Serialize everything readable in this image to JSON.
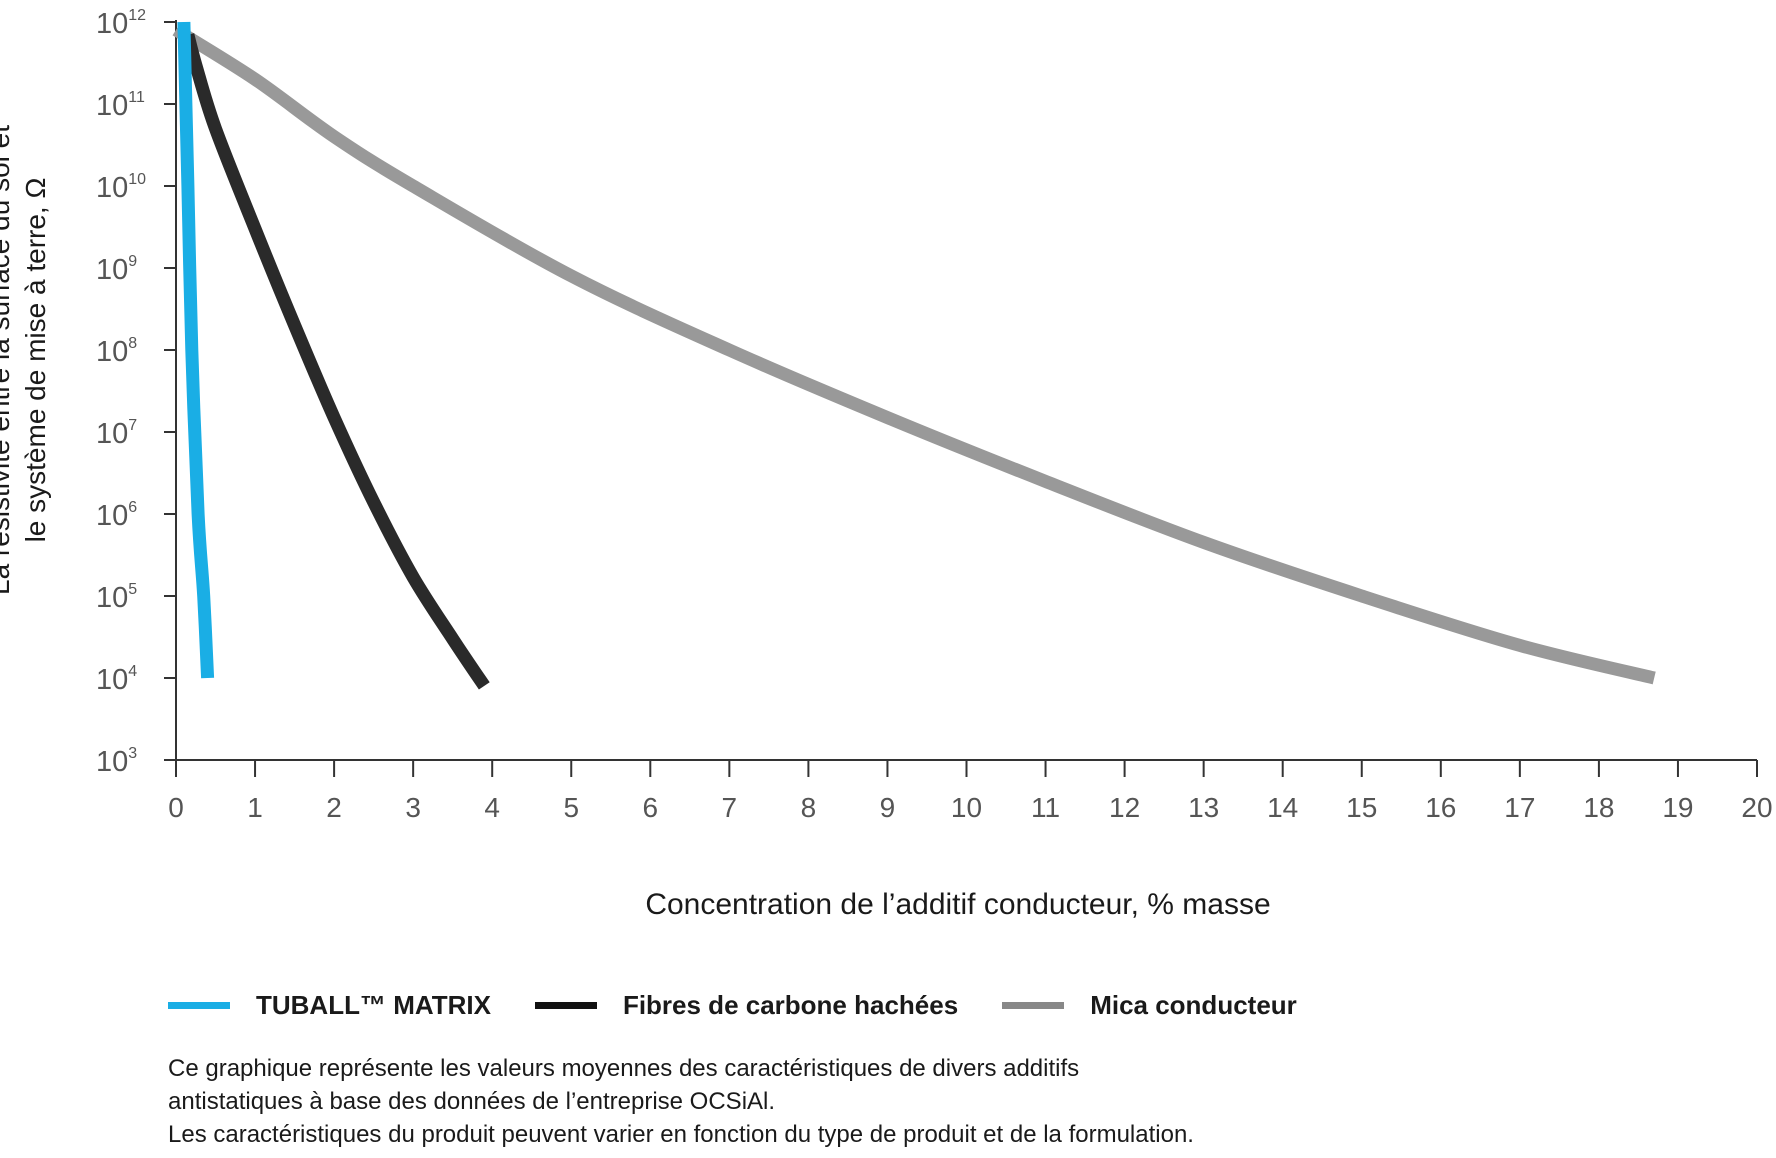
{
  "chart_data": {
    "type": "line",
    "xlabel": "Concentration de l’additif conducteur, % masse",
    "ylabel_lines": [
      "La résistivité entre la surface du sol et",
      "le système de mise à terre, Ω"
    ],
    "y_scale": "log",
    "xlim": [
      0,
      20
    ],
    "ylim": [
      1000,
      1000000000000
    ],
    "x_ticks": [
      0,
      1,
      2,
      3,
      4,
      5,
      6,
      7,
      8,
      9,
      10,
      11,
      12,
      13,
      14,
      15,
      16,
      17,
      18,
      19,
      20
    ],
    "y_ticks": [
      {
        "base": "10",
        "exp": "12"
      },
      {
        "base": "10",
        "exp": "11"
      },
      {
        "base": "10",
        "exp": "10"
      },
      {
        "base": "10",
        "exp": "9"
      },
      {
        "base": "10",
        "exp": "8"
      },
      {
        "base": "10",
        "exp": "7"
      },
      {
        "base": "10",
        "exp": "6"
      },
      {
        "base": "10",
        "exp": "5"
      },
      {
        "base": "10",
        "exp": "4"
      },
      {
        "base": "10",
        "exp": "3"
      }
    ],
    "grid": false,
    "legend_position": "bottom-left",
    "series": [
      {
        "name": "TUBALL™  MATRIX",
        "color": "#1aaee5",
        "points": [
          [
            0.1,
            1000000000000.0
          ],
          [
            0.15,
            10000000000.0
          ],
          [
            0.2,
            100000000.0
          ],
          [
            0.28,
            1000000.0
          ],
          [
            0.35,
            100000.0
          ],
          [
            0.4,
            10000.0
          ]
        ]
      },
      {
        "name": "Fibres de carbone hachées",
        "color": "#2a2a2a",
        "points": [
          [
            0.15,
            700000000000.0
          ],
          [
            0.25,
            300000000000.0
          ],
          [
            0.5,
            50000000000.0
          ],
          [
            1.0,
            3000000000.0
          ],
          [
            1.5,
            200000000.0
          ],
          [
            2.0,
            15000000.0
          ],
          [
            2.5,
            1400000.0
          ],
          [
            3.0,
            170000.0
          ],
          [
            3.5,
            30000.0
          ],
          [
            3.9,
            8000.0
          ]
        ]
      },
      {
        "name": "Mica conducteur",
        "color": "#999999",
        "points": [
          [
            0,
            800000000000.0
          ],
          [
            1,
            200000000000.0
          ],
          [
            2,
            40000000000.0
          ],
          [
            3,
            10000000000.0
          ],
          [
            5,
            800000000.0
          ],
          [
            7,
            100000000.0
          ],
          [
            9,
            15000000.0
          ],
          [
            11,
            2500000.0
          ],
          [
            13,
            450000.0
          ],
          [
            15,
            100000.0
          ],
          [
            17,
            25000.0
          ],
          [
            18.7,
            10000.0
          ]
        ]
      }
    ]
  },
  "notes": [
    "Ce graphique représente les valeurs moyennes des caractéristiques de divers additifs",
    "antistatiques à base des données de l’entreprise OCSiAl.",
    "Les caractéristiques du produit peuvent varier en fonction du type de produit et de la formulation."
  ]
}
